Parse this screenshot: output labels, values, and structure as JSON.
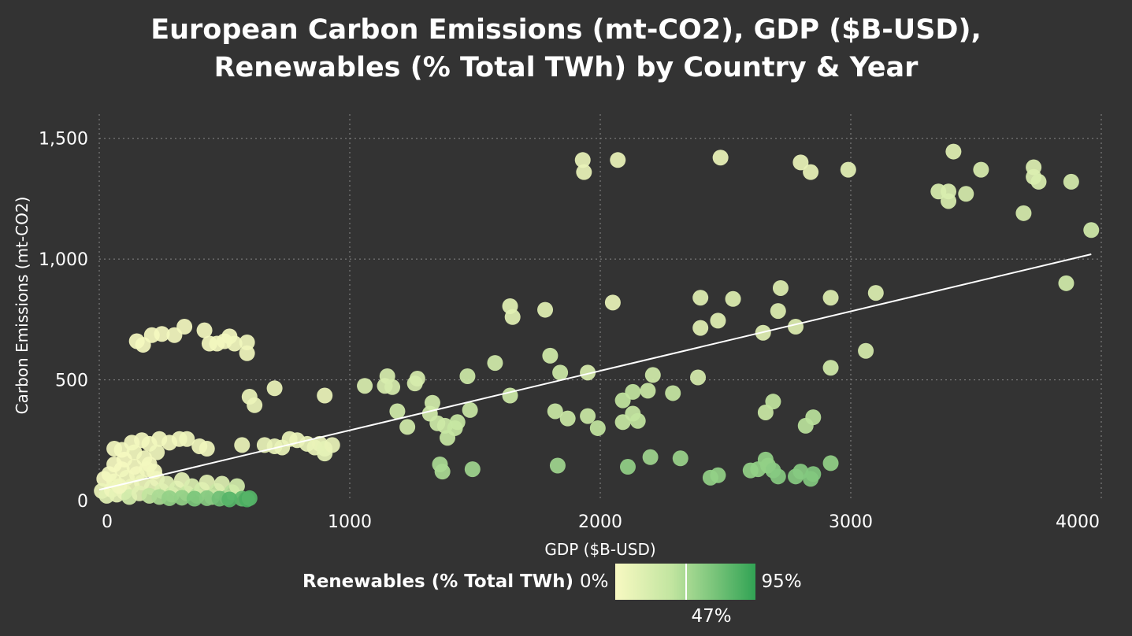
{
  "chart_data": {
    "type": "scatter",
    "title_line1": "European Carbon Emissions (mt-CO2), GDP ($B-USD),",
    "title_line2": "Renewables (% Total TWh) by Country & Year",
    "xlabel": "GDP ($B-USD)",
    "ylabel": "Carbon Emissions (mt-CO2)",
    "xlim": [
      0,
      4000
    ],
    "ylim": [
      0,
      1600
    ],
    "x_ticks": [
      0,
      1000,
      2000,
      3000,
      4000
    ],
    "x_tick_labels": [
      "0",
      "1000",
      "2000",
      "3000",
      "4000"
    ],
    "y_ticks": [
      0,
      500,
      1000,
      1500
    ],
    "y_tick_labels": [
      "0",
      "500",
      "1,000",
      "1,500"
    ],
    "grid": true,
    "trendline": {
      "x": [
        0,
        3960
      ],
      "y": [
        45,
        1020
      ]
    },
    "color_legend": {
      "title": "Renewables (% Total TWh)",
      "min_label": "0%",
      "mid_label": "47%",
      "max_label": "95%",
      "colors": [
        "#f8f9c2",
        "#c2e5a0",
        "#7bc57b",
        "#31a354"
      ]
    },
    "points": [
      {
        "x": 1930,
        "y": 1410,
        "r": 10
      },
      {
        "x": 1935,
        "y": 1360,
        "r": 10
      },
      {
        "x": 2070,
        "y": 1410,
        "r": 8
      },
      {
        "x": 2480,
        "y": 1420,
        "r": 8
      },
      {
        "x": 2800,
        "y": 1400,
        "r": 10
      },
      {
        "x": 2840,
        "y": 1360,
        "r": 10
      },
      {
        "x": 2990,
        "y": 1370,
        "r": 12
      },
      {
        "x": 3410,
        "y": 1445,
        "r": 15
      },
      {
        "x": 3520,
        "y": 1370,
        "r": 20
      },
      {
        "x": 3730,
        "y": 1380,
        "r": 18
      },
      {
        "x": 3730,
        "y": 1340,
        "r": 18
      },
      {
        "x": 3750,
        "y": 1320,
        "r": 20
      },
      {
        "x": 3880,
        "y": 1320,
        "r": 22
      },
      {
        "x": 3350,
        "y": 1280,
        "r": 20
      },
      {
        "x": 3390,
        "y": 1280,
        "r": 20
      },
      {
        "x": 3390,
        "y": 1240,
        "r": 20
      },
      {
        "x": 3460,
        "y": 1270,
        "r": 22
      },
      {
        "x": 3690,
        "y": 1190,
        "r": 22
      },
      {
        "x": 3960,
        "y": 1120,
        "r": 25
      },
      {
        "x": 3860,
        "y": 900,
        "r": 25
      },
      {
        "x": 2050,
        "y": 820,
        "r": 10
      },
      {
        "x": 1640,
        "y": 805,
        "r": 14
      },
      {
        "x": 1650,
        "y": 760,
        "r": 14
      },
      {
        "x": 1780,
        "y": 790,
        "r": 14
      },
      {
        "x": 2400,
        "y": 840,
        "r": 15
      },
      {
        "x": 2530,
        "y": 835,
        "r": 17
      },
      {
        "x": 2720,
        "y": 880,
        "r": 17
      },
      {
        "x": 2710,
        "y": 785,
        "r": 17
      },
      {
        "x": 2920,
        "y": 840,
        "r": 17
      },
      {
        "x": 3100,
        "y": 860,
        "r": 18
      },
      {
        "x": 2400,
        "y": 715,
        "r": 14
      },
      {
        "x": 2470,
        "y": 745,
        "r": 14
      },
      {
        "x": 2650,
        "y": 695,
        "r": 15
      },
      {
        "x": 2780,
        "y": 720,
        "r": 17
      },
      {
        "x": 3060,
        "y": 620,
        "r": 22
      },
      {
        "x": 2920,
        "y": 550,
        "r": 25
      },
      {
        "x": 1800,
        "y": 600,
        "r": 25
      },
      {
        "x": 1580,
        "y": 570,
        "r": 25
      },
      {
        "x": 1640,
        "y": 435,
        "r": 28
      },
      {
        "x": 1950,
        "y": 530,
        "r": 20
      },
      {
        "x": 1840,
        "y": 530,
        "r": 28
      },
      {
        "x": 2210,
        "y": 520,
        "r": 25
      },
      {
        "x": 2390,
        "y": 510,
        "r": 22
      },
      {
        "x": 1470,
        "y": 515,
        "r": 28
      },
      {
        "x": 1150,
        "y": 515,
        "r": 22
      },
      {
        "x": 1060,
        "y": 475,
        "r": 20
      },
      {
        "x": 1140,
        "y": 475,
        "r": 20
      },
      {
        "x": 1170,
        "y": 470,
        "r": 22
      },
      {
        "x": 1260,
        "y": 485,
        "r": 22
      },
      {
        "x": 1270,
        "y": 505,
        "r": 22
      },
      {
        "x": 1320,
        "y": 360,
        "r": 25
      },
      {
        "x": 1330,
        "y": 405,
        "r": 25
      },
      {
        "x": 1190,
        "y": 370,
        "r": 25
      },
      {
        "x": 1230,
        "y": 305,
        "r": 25
      },
      {
        "x": 1350,
        "y": 320,
        "r": 28
      },
      {
        "x": 1380,
        "y": 310,
        "r": 28
      },
      {
        "x": 1390,
        "y": 260,
        "r": 32
      },
      {
        "x": 1420,
        "y": 300,
        "r": 32
      },
      {
        "x": 1430,
        "y": 325,
        "r": 32
      },
      {
        "x": 1480,
        "y": 375,
        "r": 30
      },
      {
        "x": 1820,
        "y": 370,
        "r": 30
      },
      {
        "x": 1870,
        "y": 340,
        "r": 30
      },
      {
        "x": 1950,
        "y": 350,
        "r": 30
      },
      {
        "x": 1990,
        "y": 300,
        "r": 35
      },
      {
        "x": 2090,
        "y": 415,
        "r": 35
      },
      {
        "x": 2130,
        "y": 450,
        "r": 35
      },
      {
        "x": 2090,
        "y": 325,
        "r": 32
      },
      {
        "x": 2130,
        "y": 360,
        "r": 32
      },
      {
        "x": 2150,
        "y": 330,
        "r": 35
      },
      {
        "x": 2190,
        "y": 455,
        "r": 30
      },
      {
        "x": 2290,
        "y": 445,
        "r": 32
      },
      {
        "x": 2660,
        "y": 365,
        "r": 30
      },
      {
        "x": 2690,
        "y": 410,
        "r": 35
      },
      {
        "x": 2820,
        "y": 310,
        "r": 38
      },
      {
        "x": 2850,
        "y": 345,
        "r": 38
      },
      {
        "x": 1360,
        "y": 150,
        "r": 45
      },
      {
        "x": 1370,
        "y": 120,
        "r": 45
      },
      {
        "x": 1490,
        "y": 130,
        "r": 50
      },
      {
        "x": 1830,
        "y": 145,
        "r": 50
      },
      {
        "x": 2110,
        "y": 140,
        "r": 55
      },
      {
        "x": 2200,
        "y": 180,
        "r": 50
      },
      {
        "x": 2320,
        "y": 175,
        "r": 52
      },
      {
        "x": 2440,
        "y": 95,
        "r": 55
      },
      {
        "x": 2470,
        "y": 105,
        "r": 55
      },
      {
        "x": 2600,
        "y": 125,
        "r": 55
      },
      {
        "x": 2660,
        "y": 170,
        "r": 55
      },
      {
        "x": 2670,
        "y": 145,
        "r": 55
      },
      {
        "x": 2690,
        "y": 125,
        "r": 58
      },
      {
        "x": 2710,
        "y": 100,
        "r": 60
      },
      {
        "x": 2780,
        "y": 100,
        "r": 60
      },
      {
        "x": 2800,
        "y": 120,
        "r": 60
      },
      {
        "x": 2840,
        "y": 90,
        "r": 62
      },
      {
        "x": 2850,
        "y": 110,
        "r": 62
      },
      {
        "x": 2920,
        "y": 155,
        "r": 55
      },
      {
        "x": 2630,
        "y": 130,
        "r": 55
      },
      {
        "x": 150,
        "y": 660,
        "r": 2
      },
      {
        "x": 175,
        "y": 645,
        "r": 2
      },
      {
        "x": 210,
        "y": 685,
        "r": 2
      },
      {
        "x": 250,
        "y": 690,
        "r": 2
      },
      {
        "x": 300,
        "y": 685,
        "r": 3
      },
      {
        "x": 340,
        "y": 720,
        "r": 3
      },
      {
        "x": 420,
        "y": 705,
        "r": 3
      },
      {
        "x": 440,
        "y": 650,
        "r": 3
      },
      {
        "x": 470,
        "y": 650,
        "r": 3
      },
      {
        "x": 500,
        "y": 660,
        "r": 3
      },
      {
        "x": 520,
        "y": 680,
        "r": 3
      },
      {
        "x": 540,
        "y": 650,
        "r": 4
      },
      {
        "x": 590,
        "y": 655,
        "r": 5
      },
      {
        "x": 590,
        "y": 610,
        "r": 5
      },
      {
        "x": 600,
        "y": 430,
        "r": 8
      },
      {
        "x": 620,
        "y": 395,
        "r": 8
      },
      {
        "x": 700,
        "y": 465,
        "r": 8
      },
      {
        "x": 900,
        "y": 435,
        "r": 8
      },
      {
        "x": 570,
        "y": 230,
        "r": 8
      },
      {
        "x": 660,
        "y": 230,
        "r": 10
      },
      {
        "x": 700,
        "y": 225,
        "r": 10
      },
      {
        "x": 730,
        "y": 220,
        "r": 10
      },
      {
        "x": 760,
        "y": 255,
        "r": 8
      },
      {
        "x": 790,
        "y": 250,
        "r": 8
      },
      {
        "x": 830,
        "y": 235,
        "r": 10
      },
      {
        "x": 860,
        "y": 220,
        "r": 10
      },
      {
        "x": 880,
        "y": 235,
        "r": 10
      },
      {
        "x": 900,
        "y": 215,
        "r": 12
      },
      {
        "x": 900,
        "y": 195,
        "r": 12
      },
      {
        "x": 930,
        "y": 230,
        "r": 10
      },
      {
        "x": 60,
        "y": 215,
        "r": 3
      },
      {
        "x": 90,
        "y": 210,
        "r": 3
      },
      {
        "x": 130,
        "y": 240,
        "r": 3
      },
      {
        "x": 170,
        "y": 250,
        "r": 3
      },
      {
        "x": 200,
        "y": 235,
        "r": 4
      },
      {
        "x": 240,
        "y": 255,
        "r": 4
      },
      {
        "x": 280,
        "y": 240,
        "r": 4
      },
      {
        "x": 320,
        "y": 255,
        "r": 4
      },
      {
        "x": 350,
        "y": 255,
        "r": 5
      },
      {
        "x": 400,
        "y": 225,
        "r": 5
      },
      {
        "x": 430,
        "y": 215,
        "r": 5
      },
      {
        "x": 230,
        "y": 200,
        "r": 5
      },
      {
        "x": 180,
        "y": 175,
        "r": 4
      },
      {
        "x": 140,
        "y": 200,
        "r": 4
      },
      {
        "x": 20,
        "y": 90,
        "r": 2
      },
      {
        "x": 40,
        "y": 110,
        "r": 3
      },
      {
        "x": 60,
        "y": 80,
        "r": 4
      },
      {
        "x": 90,
        "y": 130,
        "r": 3
      },
      {
        "x": 110,
        "y": 95,
        "r": 5
      },
      {
        "x": 130,
        "y": 60,
        "r": 8
      },
      {
        "x": 150,
        "y": 110,
        "r": 5
      },
      {
        "x": 170,
        "y": 75,
        "r": 8
      },
      {
        "x": 190,
        "y": 130,
        "r": 5
      },
      {
        "x": 210,
        "y": 55,
        "r": 12
      },
      {
        "x": 230,
        "y": 90,
        "r": 10
      },
      {
        "x": 250,
        "y": 40,
        "r": 20
      },
      {
        "x": 270,
        "y": 70,
        "r": 15
      },
      {
        "x": 290,
        "y": 25,
        "r": 30
      },
      {
        "x": 310,
        "y": 50,
        "r": 20
      },
      {
        "x": 330,
        "y": 85,
        "r": 12
      },
      {
        "x": 350,
        "y": 30,
        "r": 30
      },
      {
        "x": 370,
        "y": 60,
        "r": 20
      },
      {
        "x": 390,
        "y": 20,
        "r": 40
      },
      {
        "x": 410,
        "y": 45,
        "r": 25
      },
      {
        "x": 430,
        "y": 75,
        "r": 15
      },
      {
        "x": 450,
        "y": 15,
        "r": 50
      },
      {
        "x": 470,
        "y": 40,
        "r": 30
      },
      {
        "x": 490,
        "y": 70,
        "r": 18
      },
      {
        "x": 510,
        "y": 12,
        "r": 60
      },
      {
        "x": 530,
        "y": 35,
        "r": 40
      },
      {
        "x": 550,
        "y": 60,
        "r": 25
      },
      {
        "x": 570,
        "y": 8,
        "r": 75
      },
      {
        "x": 590,
        "y": 5,
        "r": 85
      },
      {
        "x": 600,
        "y": 10,
        "r": 80
      },
      {
        "x": 10,
        "y": 40,
        "r": 8
      },
      {
        "x": 30,
        "y": 20,
        "r": 15
      },
      {
        "x": 50,
        "y": 45,
        "r": 6
      },
      {
        "x": 70,
        "y": 25,
        "r": 12
      },
      {
        "x": 100,
        "y": 35,
        "r": 10
      },
      {
        "x": 120,
        "y": 15,
        "r": 25
      },
      {
        "x": 160,
        "y": 30,
        "r": 15
      },
      {
        "x": 200,
        "y": 20,
        "r": 35
      },
      {
        "x": 240,
        "y": 15,
        "r": 45
      },
      {
        "x": 280,
        "y": 10,
        "r": 55
      },
      {
        "x": 330,
        "y": 12,
        "r": 55
      },
      {
        "x": 380,
        "y": 8,
        "r": 65
      },
      {
        "x": 430,
        "y": 10,
        "r": 60
      },
      {
        "x": 480,
        "y": 8,
        "r": 70
      },
      {
        "x": 520,
        "y": 5,
        "r": 80
      },
      {
        "x": 60,
        "y": 150,
        "r": 2
      },
      {
        "x": 100,
        "y": 170,
        "r": 2
      },
      {
        "x": 80,
        "y": 60,
        "r": 5
      },
      {
        "x": 140,
        "y": 140,
        "r": 3
      },
      {
        "x": 200,
        "y": 150,
        "r": 3
      },
      {
        "x": 220,
        "y": 120,
        "r": 4
      }
    ]
  }
}
